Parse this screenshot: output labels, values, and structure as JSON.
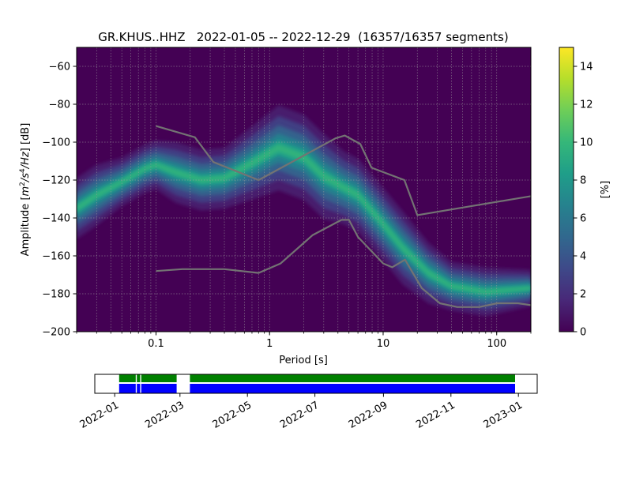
{
  "chart_data": [
    {
      "type": "heatmap",
      "title": "GR.KHUS..HHZ   2022-01-05 -- 2022-12-29  (16357/16357 segments)",
      "xlabel": "Period [s]",
      "ylabel_parts": [
        "Amplitude [",
        "m",
        "2",
        "/s",
        "4",
        "/Hz",
        "] [dB]"
      ],
      "xscale": "log",
      "xlim": [
        0.02,
        200
      ],
      "ylim": [
        -200,
        -50
      ],
      "x_ticks": [
        {
          "v": 0.1,
          "label": "0.1"
        },
        {
          "v": 1,
          "label": "1"
        },
        {
          "v": 10,
          "label": "10"
        },
        {
          "v": 100,
          "label": "100"
        }
      ],
      "y_ticks": [
        {
          "v": -60,
          "label": "−60"
        },
        {
          "v": -80,
          "label": "−80"
        },
        {
          "v": -100,
          "label": "−100"
        },
        {
          "v": -120,
          "label": "−120"
        },
        {
          "v": -140,
          "label": "−140"
        },
        {
          "v": -160,
          "label": "−160"
        },
        {
          "v": -180,
          "label": "−180"
        },
        {
          "v": -200,
          "label": "−200"
        }
      ],
      "grid": true,
      "background_color": "#440154",
      "density_ridge": [
        {
          "x": 0.02,
          "y": -135,
          "spread": 5
        },
        {
          "x": 0.03,
          "y": -128,
          "spread": 5
        },
        {
          "x": 0.05,
          "y": -121,
          "spread": 4
        },
        {
          "x": 0.08,
          "y": -114,
          "spread": 4
        },
        {
          "x": 0.1,
          "y": -112,
          "spread": 4
        },
        {
          "x": 0.15,
          "y": -116,
          "spread": 5
        },
        {
          "x": 0.25,
          "y": -120,
          "spread": 5
        },
        {
          "x": 0.4,
          "y": -119,
          "spread": 5
        },
        {
          "x": 0.7,
          "y": -111,
          "spread": 6
        },
        {
          "x": 1.2,
          "y": -103,
          "spread": 7
        },
        {
          "x": 2,
          "y": -108,
          "spread": 7
        },
        {
          "x": 3,
          "y": -118,
          "spread": 7
        },
        {
          "x": 4.5,
          "y": -124,
          "spread": 6
        },
        {
          "x": 6,
          "y": -128,
          "spread": 6
        },
        {
          "x": 9,
          "y": -140,
          "spread": 6
        },
        {
          "x": 15,
          "y": -156,
          "spread": 6
        },
        {
          "x": 25,
          "y": -169,
          "spread": 5
        },
        {
          "x": 40,
          "y": -176,
          "spread": 4
        },
        {
          "x": 80,
          "y": -179,
          "spread": 4
        },
        {
          "x": 200,
          "y": -177,
          "spread": 3
        }
      ],
      "nhnm": [
        {
          "x": 0.1,
          "y": -168
        },
        {
          "x": 0.17,
          "y": -167
        },
        {
          "x": 0.4,
          "y": -167
        },
        {
          "x": 0.8,
          "y": -169
        },
        {
          "x": 1.25,
          "y": -164
        },
        {
          "x": 2.4,
          "y": -149
        },
        {
          "x": 4.3,
          "y": -141
        },
        {
          "x": 5.0,
          "y": -141
        },
        {
          "x": 6.0,
          "y": -150
        },
        {
          "x": 10,
          "y": -164
        },
        {
          "x": 12,
          "y": -166
        },
        {
          "x": 15.6,
          "y": -162
        },
        {
          "x": 21.9,
          "y": -177
        },
        {
          "x": 31.6,
          "y": -185
        },
        {
          "x": 45,
          "y": -187
        },
        {
          "x": 70,
          "y": -187
        },
        {
          "x": 101,
          "y": -185
        },
        {
          "x": 154,
          "y": -185
        },
        {
          "x": 200,
          "y": -186
        }
      ],
      "nlnm_high": [
        {
          "x": 0.1,
          "y": -91.5
        },
        {
          "x": 0.22,
          "y": -97.4
        },
        {
          "x": 0.32,
          "y": -110.5
        },
        {
          "x": 0.8,
          "y": -120
        },
        {
          "x": 3.8,
          "y": -98
        },
        {
          "x": 4.6,
          "y": -96.5
        },
        {
          "x": 6.3,
          "y": -101
        },
        {
          "x": 7.9,
          "y": -113.5
        },
        {
          "x": 15.4,
          "y": -120
        },
        {
          "x": 20,
          "y": -138.5
        },
        {
          "x": 200,
          "y": -128.5
        }
      ],
      "model_line_color": "#737373"
    },
    {
      "type": "colorbar",
      "label": "[%]",
      "ylim": [
        0,
        15
      ],
      "ticks": [
        {
          "v": 0,
          "label": "0"
        },
        {
          "v": 2,
          "label": "2"
        },
        {
          "v": 4,
          "label": "4"
        },
        {
          "v": 6,
          "label": "6"
        },
        {
          "v": 8,
          "label": "8"
        },
        {
          "v": 10,
          "label": "10"
        },
        {
          "v": 12,
          "label": "12"
        },
        {
          "v": 14,
          "label": "14"
        }
      ],
      "colors": [
        "#440154",
        "#482878",
        "#3e4989",
        "#31688e",
        "#26828e",
        "#1f9e89",
        "#35b779",
        "#6ece58",
        "#b5de2b",
        "#fde725"
      ]
    },
    {
      "type": "timeline",
      "x_ticks": [
        "2022-01",
        "2022-03",
        "2022-05",
        "2022-07",
        "2022-09",
        "2022-11",
        "2023-01"
      ],
      "xlim": [
        "2021-12-14",
        "2023-01-18"
      ],
      "coverage_color": "#0000ff",
      "used_color": "#008000",
      "gap_color": "#ffffff",
      "coverage": [
        {
          "start": "2022-01-05",
          "end": "2022-01-20"
        },
        {
          "start": "2022-01-21",
          "end": "2022-01-24"
        },
        {
          "start": "2022-01-25",
          "end": "2022-02-26"
        },
        {
          "start": "2022-03-10",
          "end": "2022-12-29"
        }
      ]
    }
  ]
}
